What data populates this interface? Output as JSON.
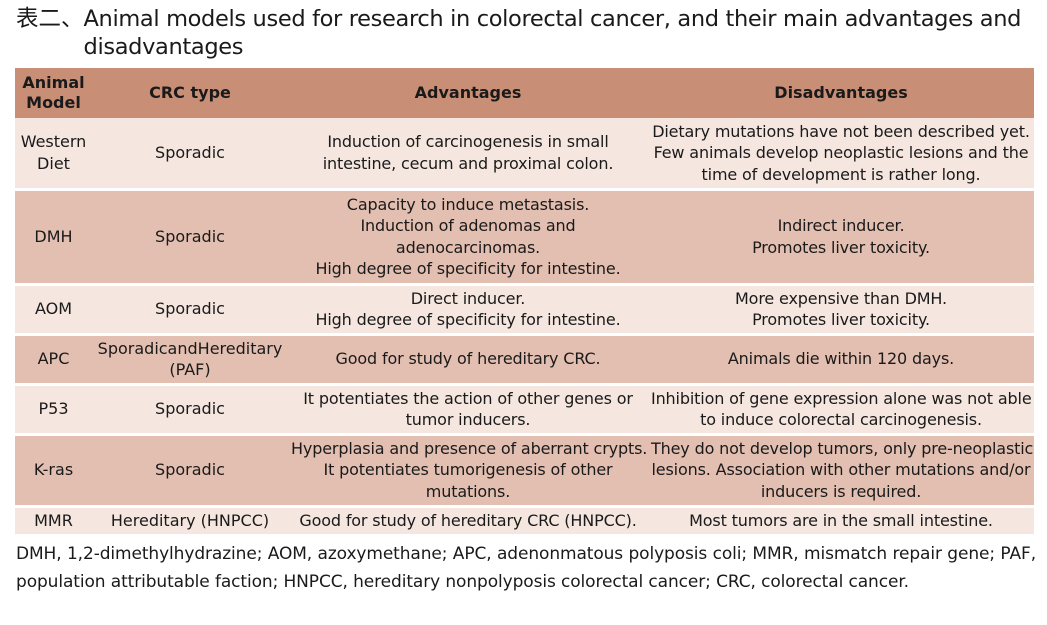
{
  "title": {
    "prefix": "表二、",
    "text": "Animal models used for research in colorectal cancer, and their main advantages and disadvantages"
  },
  "table": {
    "headers": {
      "model": [
        "Animal",
        "Model"
      ],
      "type": "CRC type",
      "advantages": "Advantages",
      "disadvantages": "Disadvantages"
    },
    "rows": [
      {
        "model": [
          "Western",
          "Diet"
        ],
        "type": [
          "Sporadic"
        ],
        "advantages": [
          "Induction of carcinogenesis in small",
          "intestine, cecum and proximal colon."
        ],
        "disadvantages": [
          "Dietary mutations have not been described yet.",
          "Few animals develop neoplastic lesions and the",
          "time of development is rather long."
        ]
      },
      {
        "model": [
          "DMH"
        ],
        "type": [
          "Sporadic"
        ],
        "advantages": [
          "Capacity to induce metastasis.",
          "Induction of adenomas and",
          "adenocarcinomas.",
          "High degree of specificity for intestine."
        ],
        "disadvantages": [
          "Indirect inducer.",
          "Promotes liver toxicity."
        ]
      },
      {
        "model": [
          "AOM"
        ],
        "type": [
          "Sporadic"
        ],
        "advantages": [
          "Direct inducer.",
          "High degree of specificity for intestine."
        ],
        "disadvantages": [
          "More expensive than DMH.",
          "Promotes liver toxicity."
        ]
      },
      {
        "model": [
          "APC"
        ],
        "type": [
          "SporadicandHereditary",
          "(PAF)"
        ],
        "advantages": [
          "Good for study of hereditary CRC."
        ],
        "disadvantages": [
          "Animals die within 120 days."
        ]
      },
      {
        "model": [
          "P53"
        ],
        "type": [
          "Sporadic"
        ],
        "advantages": [
          "It potentiates the action of other genes or",
          "tumor inducers."
        ],
        "disadvantages": [
          "Inhibition of gene expression alone was not able",
          "to induce colorectal carcinogenesis."
        ]
      },
      {
        "model": [
          "K-ras"
        ],
        "type": [
          "Sporadic"
        ],
        "advantages": [
          "Hyperplasia and presence of aberrant crypts.",
          "It potentiates tumorigenesis of other",
          "mutations."
        ],
        "disadvantages": [
          "They do not develop tumors, only pre-neoplastic",
          "lesions. Association with other mutations and/or",
          "inducers is required."
        ]
      },
      {
        "model": [
          "MMR"
        ],
        "type": [
          "Hereditary (HNPCC)"
        ],
        "advantages": [
          "Good for study of hereditary CRC (HNPCC)."
        ],
        "disadvantages": [
          "Most tumors are in the small intestine."
        ]
      }
    ]
  },
  "colors": {
    "header": "#c98f76",
    "row_light": "#f5e6df",
    "row_dark": "#e3bfb1"
  },
  "footnote": "DMH, 1,2-dimethylhydrazine; AOM, azoxymethane; APC, adenonmatous polyposis coli; MMR, mismatch repair gene; PAF, population attributable faction; HNPCC, hereditary nonpolyposis colorectal cancer; CRC, colorectal cancer."
}
